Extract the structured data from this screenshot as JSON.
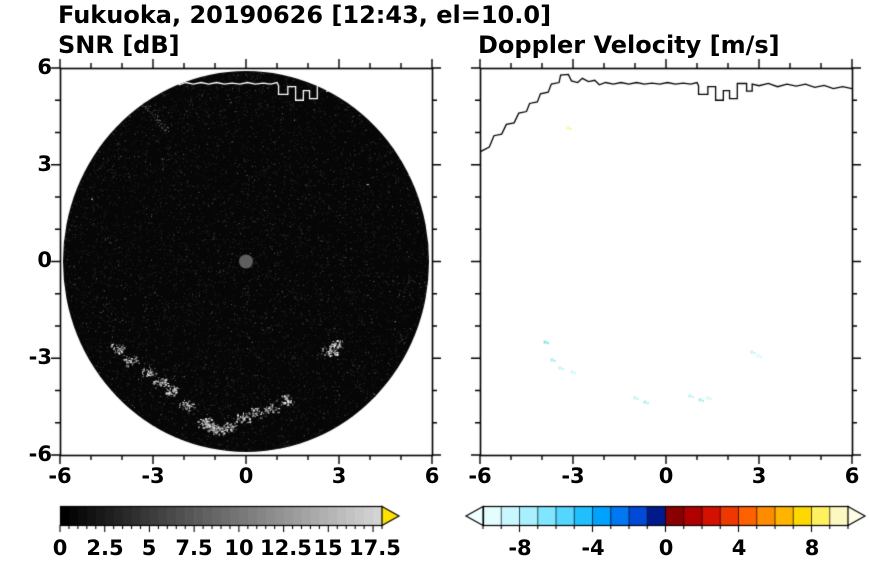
{
  "header": {
    "title": "Fukuoka, 20190626 [12:43, el=10.0]"
  },
  "panels": [
    {
      "title": "SNR [dB]",
      "x_tick_labels": [
        "-6",
        "-3",
        "0",
        "3",
        "6"
      ],
      "y_tick_labels": [
        "6",
        "3",
        "0",
        "-3",
        "-6"
      ],
      "colorbar_labels": [
        "0",
        "2.5",
        "5",
        "7.5",
        "10",
        "12.5",
        "15",
        "17.5"
      ]
    },
    {
      "title": "Doppler Velocity [m/s]",
      "x_tick_labels": [
        "-6",
        "-3",
        "0",
        "3",
        "6"
      ],
      "colorbar_labels": [
        "-8",
        "-4",
        "0",
        "4",
        "8"
      ]
    }
  ],
  "coastline": [
    [
      -6.0,
      3.4
    ],
    [
      -5.7,
      3.55
    ],
    [
      -5.55,
      3.9
    ],
    [
      -5.3,
      3.95
    ],
    [
      -5.15,
      4.25
    ],
    [
      -4.9,
      4.3
    ],
    [
      -4.75,
      4.6
    ],
    [
      -4.5,
      4.65
    ],
    [
      -4.4,
      4.9
    ],
    [
      -4.15,
      4.95
    ],
    [
      -4.05,
      5.2
    ],
    [
      -3.8,
      5.25
    ],
    [
      -3.7,
      5.5
    ],
    [
      -3.45,
      5.55
    ],
    [
      -3.4,
      5.78
    ],
    [
      -3.15,
      5.8
    ],
    [
      -3.05,
      5.6
    ],
    [
      -2.85,
      5.55
    ],
    [
      -2.7,
      5.68
    ],
    [
      -2.5,
      5.58
    ],
    [
      -2.3,
      5.62
    ],
    [
      -2.15,
      5.48
    ],
    [
      -1.95,
      5.55
    ],
    [
      -1.7,
      5.5
    ],
    [
      -1.45,
      5.55
    ],
    [
      -1.2,
      5.5
    ],
    [
      -0.95,
      5.55
    ],
    [
      -0.7,
      5.5
    ],
    [
      -0.45,
      5.53
    ],
    [
      -0.2,
      5.5
    ],
    [
      0.05,
      5.55
    ],
    [
      0.3,
      5.5
    ],
    [
      0.55,
      5.53
    ],
    [
      0.8,
      5.5
    ],
    [
      1.0,
      5.55
    ],
    [
      1.05,
      5.45
    ],
    [
      1.05,
      5.18
    ],
    [
      1.35,
      5.18
    ],
    [
      1.35,
      5.42
    ],
    [
      1.6,
      5.42
    ],
    [
      1.6,
      5.0
    ],
    [
      1.85,
      5.0
    ],
    [
      1.85,
      5.3
    ],
    [
      2.05,
      5.3
    ],
    [
      2.05,
      5.05
    ],
    [
      2.3,
      5.05
    ],
    [
      2.3,
      5.52
    ],
    [
      2.6,
      5.52
    ],
    [
      2.6,
      5.28
    ],
    [
      2.78,
      5.28
    ],
    [
      2.78,
      5.5
    ],
    [
      3.0,
      5.45
    ],
    [
      3.3,
      5.52
    ],
    [
      3.6,
      5.42
    ],
    [
      3.9,
      5.5
    ],
    [
      4.2,
      5.44
    ],
    [
      4.5,
      5.5
    ],
    [
      4.8,
      5.4
    ],
    [
      5.1,
      5.46
    ],
    [
      5.4,
      5.36
    ],
    [
      5.7,
      5.42
    ],
    [
      6.0,
      5.36
    ]
  ],
  "chart_data": [
    {
      "type": "heatmap",
      "title": "SNR [dB]",
      "xlabel": "",
      "ylabel": "",
      "xlim": [
        -6,
        6
      ],
      "ylim": [
        -6,
        6
      ],
      "x_ticks": [
        -6,
        -3,
        0,
        3,
        6
      ],
      "y_ticks": [
        -6,
        -3,
        0,
        3,
        6
      ],
      "grid": false,
      "colorbar": {
        "label": "SNR [dB]",
        "min": 0,
        "max": 18,
        "tick_values": [
          0,
          2.5,
          5,
          7.5,
          10,
          12.5,
          15,
          17.5
        ],
        "start_color": "#000000",
        "end_color": "#d4d4d4",
        "over_color": "#ffe000"
      },
      "scan": {
        "center": [
          0,
          0
        ],
        "radius": 6,
        "background": "#060606",
        "center_dot_color": "#5e5e5e"
      },
      "coastline_color": "#ffffff",
      "echo_points": [
        [
          -4.13,
          -2.68
        ],
        [
          -3.74,
          -3.05
        ],
        [
          -3.16,
          -3.43
        ],
        [
          -2.77,
          -3.74
        ],
        [
          -2.39,
          -3.98
        ],
        [
          -1.9,
          -4.45
        ],
        [
          -1.32,
          -4.98
        ],
        [
          -1.15,
          -5.1
        ],
        [
          -1.0,
          -5.22
        ],
        [
          -0.58,
          -5.16
        ],
        [
          -0.13,
          -4.85
        ],
        [
          0.32,
          -4.67
        ],
        [
          0.77,
          -4.54
        ],
        [
          1.26,
          -4.29
        ],
        [
          2.71,
          -2.81
        ],
        [
          2.9,
          -2.56
        ]
      ],
      "streak": [
        [
          -3.5,
          5.05
        ],
        [
          -3.15,
          4.72
        ],
        [
          -2.82,
          4.35
        ],
        [
          -2.55,
          4.0
        ]
      ],
      "stray_points": [
        [
          4.8,
          -1.85
        ],
        [
          -5.0,
          1.95
        ],
        [
          1.55,
          4.4
        ],
        [
          -0.5,
          4.95
        ],
        [
          3.9,
          2.4
        ],
        [
          -4.4,
          0.6
        ]
      ]
    },
    {
      "type": "heatmap",
      "title": "Doppler Velocity [m/s]",
      "xlabel": "",
      "ylabel": "",
      "xlim": [
        -6,
        6
      ],
      "ylim": [
        -6,
        6
      ],
      "x_ticks": [
        -6,
        -3,
        0,
        3,
        6
      ],
      "y_ticks": [
        -6,
        -3,
        0,
        3,
        6
      ],
      "grid": false,
      "colorbar": {
        "label": "Doppler Velocity [m/s]",
        "min": -10,
        "max": 10,
        "tick_values": [
          -8,
          -4,
          0,
          4,
          8
        ],
        "segment_colors": [
          "#e4fdff",
          "#c8f8ff",
          "#a8f0ff",
          "#80e6ff",
          "#54d6ff",
          "#20c0ff",
          "#00a2ff",
          "#0078f4",
          "#004ad8",
          "#001a8c",
          "#8a0000",
          "#b00000",
          "#d41000",
          "#ee3800",
          "#ff6000",
          "#ff8c00",
          "#ffb400",
          "#ffd800",
          "#fff060",
          "#fdf8c0"
        ],
        "under_color": "#f0ffff",
        "over_color": "#fffce8"
      },
      "coastline_color": "#000000",
      "specks": [
        {
          "x": -3.9,
          "y": -2.5,
          "c": "#7fe7e0"
        },
        {
          "x": -3.68,
          "y": -3.05,
          "c": "#a5eef2"
        },
        {
          "x": -3.42,
          "y": -3.3,
          "c": "#bdf4f6"
        },
        {
          "x": -3.03,
          "y": -3.43,
          "c": "#cdf7f8"
        },
        {
          "x": -1.0,
          "y": -4.23,
          "c": "#c2f4f4"
        },
        {
          "x": -0.68,
          "y": -4.36,
          "c": "#aeeff2"
        },
        {
          "x": 0.77,
          "y": -4.17,
          "c": "#bdf3f5"
        },
        {
          "x": 1.1,
          "y": -4.29,
          "c": "#a5eef0"
        },
        {
          "x": 1.35,
          "y": -4.23,
          "c": "#cdf7f8"
        },
        {
          "x": 2.77,
          "y": -2.81,
          "c": "#c2f4f6"
        },
        {
          "x": 2.97,
          "y": -2.93,
          "c": "#d5f9fa"
        },
        {
          "x": -3.16,
          "y": 4.14,
          "c": "#f7f7a0"
        }
      ]
    }
  ]
}
